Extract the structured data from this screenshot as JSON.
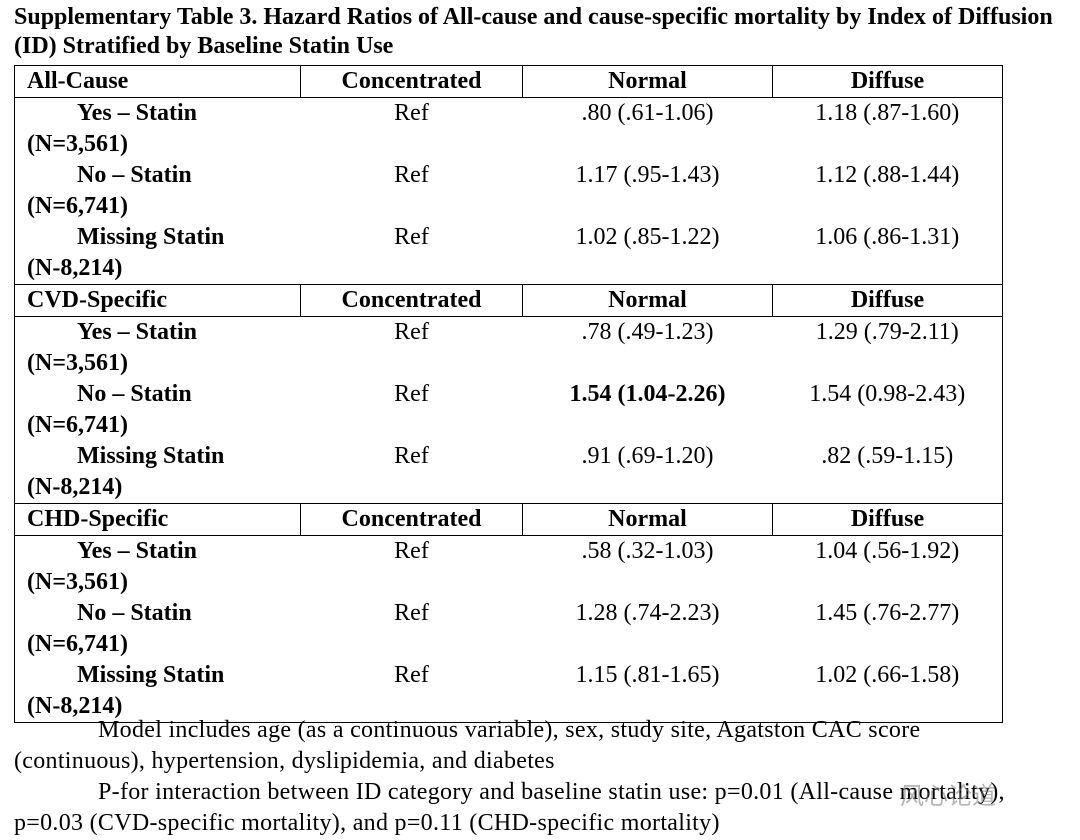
{
  "title": "Supplementary Table 3. Hazard Ratios of All-cause and cause-specific mortality by Index of Diffusion (ID) Stratified by Baseline Statin Use",
  "table": {
    "sections": [
      {
        "header": [
          "All-Cause",
          "Concentrated",
          "Normal",
          "Diffuse"
        ],
        "rows": [
          {
            "label": "Yes – Statin",
            "n": "(N=3,561)",
            "values": [
              "Ref",
              ".80 (.61-1.06)",
              "1.18 (.87-1.60)"
            ]
          },
          {
            "label": "No – Statin",
            "n": "(N=6,741)",
            "values": [
              "Ref",
              "1.17 (.95-1.43)",
              "1.12 (.88-1.44)"
            ]
          },
          {
            "label": "Missing Statin",
            "n": "(N-8,214)",
            "values": [
              "Ref",
              "1.02 (.85-1.22)",
              "1.06 (.86-1.31)"
            ]
          }
        ]
      },
      {
        "header": [
          "CVD-Specific",
          "Concentrated",
          "Normal",
          "Diffuse"
        ],
        "rows": [
          {
            "label": "Yes – Statin",
            "n": "(N=3,561)",
            "values": [
              "Ref",
              ".78 (.49-1.23)",
              "1.29 (.79-2.11)"
            ]
          },
          {
            "label": "No – Statin",
            "n": "(N=6,741)",
            "values": [
              "Ref",
              "1.54 (1.04-2.26)",
              "1.54 (0.98-2.43)"
            ]
          },
          {
            "label": "Missing Statin",
            "n": "(N-8,214)",
            "values": [
              "Ref",
              ".91 (.69-1.20)",
              ".82 (.59-1.15)"
            ]
          }
        ]
      },
      {
        "header": [
          "CHD-Specific",
          "Concentrated",
          "Normal",
          "Diffuse"
        ],
        "rows": [
          {
            "label": "Yes – Statin",
            "n": "(N=3,561)",
            "values": [
              "Ref",
              ".58 (.32-1.03)",
              "1.04 (.56-1.92)"
            ]
          },
          {
            "label": "No – Statin",
            "n": "(N=6,741)",
            "values": [
              "Ref",
              "1.28 (.74-2.23)",
              "1.45 (.76-2.77)"
            ]
          },
          {
            "label": "Missing Statin",
            "n": "(N-8,214)",
            "values": [
              "Ref",
              "1.15 (.81-1.65)",
              "1.02 (.66-1.58)"
            ]
          }
        ]
      }
    ]
  },
  "notes": [
    "Model includes age (as a continuous variable), sex, study site, Agatston CAC score (continuous), hypertension, dyslipidemia, and diabetes",
    "P-for interaction between ID category and baseline statin use: p=0.01 (All-cause mortality), p=0.03 (CVD-specific mortality), and p=0.11 (CHD-specific mortality)"
  ],
  "watermark": "风心论道"
}
